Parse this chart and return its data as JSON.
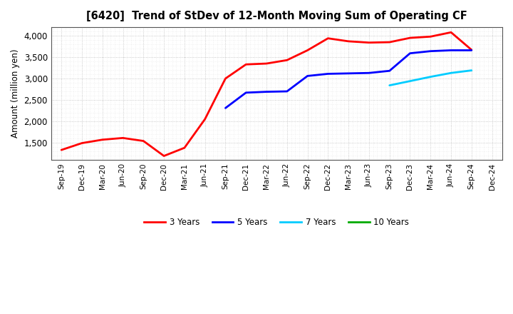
{
  "title": "[6420]  Trend of StDev of 12-Month Moving Sum of Operating CF",
  "ylabel": "Amount (million yen)",
  "background_color": "#ffffff",
  "plot_bg_color": "#ffffff",
  "grid_color": "#bbbbbb",
  "x_labels": [
    "Sep-19",
    "Dec-19",
    "Mar-20",
    "Jun-20",
    "Sep-20",
    "Dec-20",
    "Mar-21",
    "Jun-21",
    "Sep-21",
    "Dec-21",
    "Mar-22",
    "Jun-22",
    "Sep-22",
    "Dec-22",
    "Mar-23",
    "Jun-23",
    "Sep-23",
    "Dec-23",
    "Mar-24",
    "Jun-24",
    "Sep-24",
    "Dec-24"
  ],
  "series": [
    {
      "label": "3 Years",
      "color": "#ff0000",
      "linewidth": 2.0,
      "data_x": [
        0,
        1,
        2,
        3,
        4,
        5,
        6,
        7,
        8,
        9,
        10,
        11,
        12,
        13,
        14,
        15,
        16,
        17,
        18,
        19,
        20
      ],
      "data_y": [
        1330,
        1490,
        1570,
        1610,
        1540,
        1190,
        1380,
        2050,
        3000,
        3330,
        3350,
        3430,
        3660,
        3940,
        3870,
        3840,
        3850,
        3950,
        3980,
        4080,
        3670
      ]
    },
    {
      "label": "5 Years",
      "color": "#0000ff",
      "linewidth": 2.0,
      "data_x": [
        8,
        9,
        10,
        11,
        12,
        13,
        14,
        15,
        16,
        17,
        18,
        19,
        20
      ],
      "data_y": [
        2310,
        2670,
        2690,
        2700,
        3060,
        3110,
        3120,
        3130,
        3180,
        3590,
        3640,
        3660,
        3660
      ]
    },
    {
      "label": "7 Years",
      "color": "#00ccff",
      "linewidth": 2.0,
      "data_x": [
        16,
        17,
        18,
        19,
        20
      ],
      "data_y": [
        2840,
        2940,
        3040,
        3130,
        3190
      ]
    },
    {
      "label": "10 Years",
      "color": "#00aa00",
      "linewidth": 2.0,
      "data_x": [],
      "data_y": []
    }
  ],
  "ylim": [
    1100,
    4200
  ],
  "yticks": [
    1500,
    2000,
    2500,
    3000,
    3500,
    4000
  ],
  "legend_colors": [
    "#ff0000",
    "#0000ff",
    "#00ccff",
    "#00aa00"
  ],
  "legend_labels": [
    "3 Years",
    "5 Years",
    "7 Years",
    "10 Years"
  ]
}
